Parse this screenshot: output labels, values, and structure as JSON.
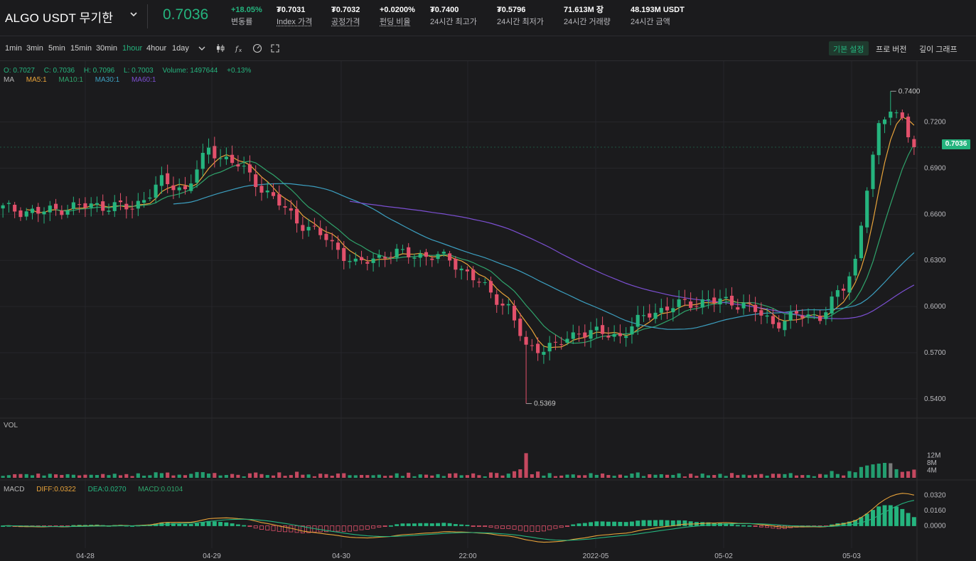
{
  "header": {
    "symbol": "ALGO USDT 무기한",
    "last_price": "0.7036",
    "stats": [
      {
        "value": "+18.05%",
        "label": "변동률",
        "green": true,
        "underline": false
      },
      {
        "value": "₮0.7031",
        "label": "Index 가격",
        "green": false,
        "underline": true
      },
      {
        "value": "₮0.7032",
        "label": "공정가격",
        "green": false,
        "underline": true
      },
      {
        "value": "+0.0200%",
        "label": "펀딩 비율",
        "green": false,
        "underline": true
      },
      {
        "value": "₮0.7400",
        "label": "24시간 최고가",
        "green": false,
        "underline": false
      },
      {
        "value": "₮0.5796",
        "label": "24시간 최저가",
        "green": false,
        "underline": false
      },
      {
        "value": "71.613M 장",
        "label": "24시간 거래량",
        "green": false,
        "underline": false
      },
      {
        "value": "48.193M USDT",
        "label": "24시간 금액",
        "green": false,
        "underline": false
      }
    ]
  },
  "toolbar": {
    "timeframes": [
      "1min",
      "3min",
      "5min",
      "15min",
      "30min",
      "1hour",
      "4hour",
      "1day"
    ],
    "active_timeframe": "1hour",
    "views": [
      "기본 설정",
      "프로 버전",
      "깊이 그래프"
    ],
    "active_view": "기본 설정"
  },
  "legend": {
    "open": "O: 0.7027",
    "close": "C: 0.7036",
    "high": "H: 0.7096",
    "low": "L: 0.7003",
    "volume": "Volume: 1497644",
    "change": "+0.13%",
    "ma_label": "MA",
    "ma5": "MA5:1",
    "ma10": "MA10:1",
    "ma30": "MA30:1",
    "ma60": "MA60:1",
    "vol_label": "VOL",
    "macd_label": "MACD",
    "diff": "DIFF:0.0322",
    "dea": "DEA:0.0270",
    "macd": "MACD:0.0104"
  },
  "colors": {
    "up": "#25b47e",
    "down": "#e2506b",
    "ma5": "#e8a33a",
    "ma10": "#2fa36b",
    "ma30": "#3c9fc0",
    "ma60": "#7b4fd1"
  },
  "chart_data": {
    "type": "candlestick",
    "price_axis_labels": [
      "0.7200",
      "0.6900",
      "0.6600",
      "0.6300",
      "0.6000",
      "0.5700",
      "0.5400"
    ],
    "price_range": [
      0.533,
      0.748
    ],
    "time_axis_labels": [
      "04-28",
      "04-29",
      "04-30",
      "22:00",
      "2022-05",
      "05-02",
      "05-03"
    ],
    "volume_axis_labels": [
      "12M",
      "8M",
      "4M"
    ],
    "macd_axis_labels": [
      "0.0320",
      "0.0160",
      "0.0000"
    ],
    "high_marker": "0.7400",
    "low_marker": "0.5369",
    "current_price_tag": "0.7036",
    "anchors": [
      [
        0,
        0.664
      ],
      [
        6,
        0.661
      ],
      [
        10,
        0.664
      ],
      [
        16,
        0.666
      ],
      [
        22,
        0.664
      ],
      [
        27,
        0.681
      ],
      [
        31,
        0.676
      ],
      [
        35,
        0.702
      ],
      [
        40,
        0.692
      ],
      [
        43,
        0.681
      ],
      [
        50,
        0.656
      ],
      [
        55,
        0.644
      ],
      [
        60,
        0.627
      ],
      [
        65,
        0.634
      ],
      [
        70,
        0.634
      ],
      [
        76,
        0.631
      ],
      [
        82,
        0.612
      ],
      [
        86,
        0.599
      ],
      [
        89,
        0.573
      ],
      [
        94,
        0.574
      ],
      [
        98,
        0.584
      ],
      [
        105,
        0.581
      ],
      [
        110,
        0.596
      ],
      [
        115,
        0.601
      ],
      [
        120,
        0.604
      ],
      [
        126,
        0.602
      ],
      [
        131,
        0.589
      ],
      [
        135,
        0.594
      ],
      [
        139,
        0.594
      ],
      [
        143,
        0.612
      ],
      [
        145,
        0.63
      ],
      [
        147,
        0.678
      ],
      [
        149,
        0.715
      ],
      [
        151,
        0.73
      ],
      [
        153,
        0.722
      ],
      [
        154,
        0.712
      ],
      [
        155,
        0.7036
      ]
    ]
  }
}
